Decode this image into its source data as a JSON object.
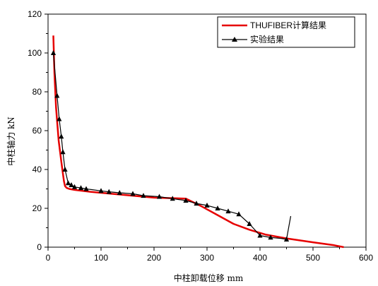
{
  "chart_data": {
    "type": "line",
    "xlabel": "中柱卸载位移 mm",
    "ylabel": "中柱轴力 kN",
    "xlim": [
      0,
      600
    ],
    "ylim": [
      0,
      120
    ],
    "x_ticks": [
      "0",
      "100",
      "200",
      "300",
      "400",
      "500",
      "600"
    ],
    "y_ticks": [
      "0",
      "20",
      "40",
      "60",
      "80",
      "100",
      "120"
    ],
    "legend_position": "top-right",
    "grid": false,
    "series": [
      {
        "name": "THUFIBER计算结果",
        "color": "#e60000",
        "marker": "none",
        "x": [
          10,
          12,
          15,
          20,
          25,
          28,
          30,
          32,
          35,
          40,
          50,
          80,
          120,
          160,
          200,
          240,
          260,
          290,
          320,
          350,
          380,
          410,
          450,
          500,
          540,
          558
        ],
        "y": [
          109,
          90,
          72,
          55,
          44,
          38,
          34,
          31.5,
          30.5,
          30,
          29.5,
          28.5,
          27.5,
          26.5,
          25.5,
          25.2,
          25,
          21,
          16.5,
          12,
          9,
          6.5,
          4.5,
          2.5,
          1,
          0
        ]
      },
      {
        "name": "实验结果",
        "color": "#000000",
        "marker": "triangle",
        "x": [
          10,
          17,
          21,
          25,
          28,
          32,
          38,
          44,
          50,
          62,
          72,
          100,
          115,
          135,
          160,
          180,
          210,
          235,
          260,
          280,
          300,
          320,
          340,
          360,
          380,
          400,
          420,
          440,
          450,
          458
        ],
        "y": [
          100,
          78,
          66,
          57,
          49,
          40,
          33,
          32,
          31,
          30.5,
          30,
          29,
          28.5,
          28,
          27.5,
          26.5,
          26,
          25,
          24,
          22.5,
          21.5,
          20,
          18.5,
          17,
          12,
          6,
          5,
          4.5,
          4,
          16
        ],
        "marker_x": [
          10,
          17,
          21,
          25,
          28,
          32,
          38,
          44,
          50,
          62,
          72,
          100,
          115,
          135,
          160,
          180,
          210,
          235,
          260,
          280,
          300,
          320,
          340,
          360,
          380,
          400,
          420,
          450
        ],
        "marker_y": [
          100,
          78,
          66,
          57,
          49,
          40,
          33,
          32,
          31,
          30.5,
          30,
          29,
          28.5,
          28,
          27.5,
          26.5,
          26,
          25,
          24,
          22.5,
          21.5,
          20,
          18.5,
          17,
          12,
          6,
          5,
          4
        ]
      }
    ]
  }
}
